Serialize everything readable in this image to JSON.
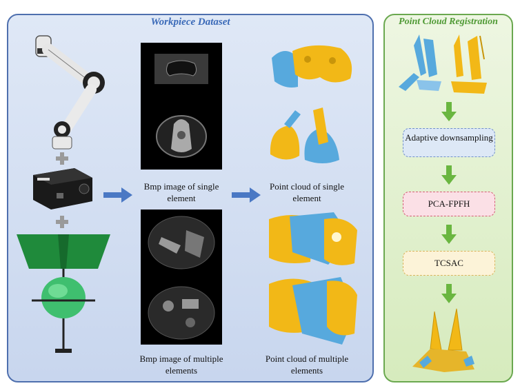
{
  "left_panel": {
    "title": "Workpiece Dataset",
    "captions": {
      "bmp_single": "Bmp image of single element",
      "cloud_single": "Point cloud of single element",
      "bmp_multiple": "Bmp image of multiple elements",
      "cloud_multiple": "Point cloud of multiple elements"
    }
  },
  "right_panel": {
    "title": "Point Cloud Registration",
    "steps": [
      "Adaptive downsampling",
      "PCA-FPFH",
      "TCSAC"
    ]
  },
  "colors": {
    "left_border": "#4e6fae",
    "right_border": "#6aa84f",
    "arrow_blue": "#4a78c4",
    "arrow_green": "#6ab640",
    "cloud_yellow": "#f2b817",
    "cloud_blue": "#57a9dd"
  }
}
